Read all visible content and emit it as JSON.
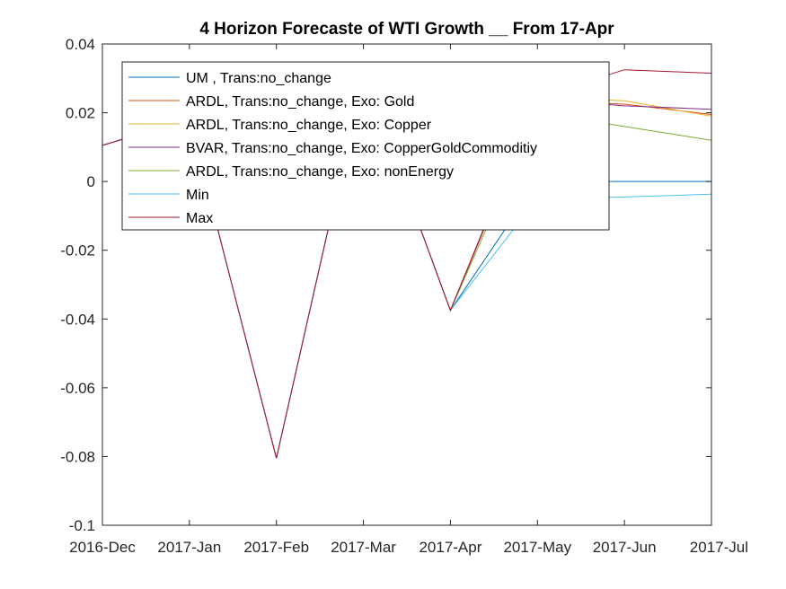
{
  "chart_data": {
    "type": "line",
    "title": "4 Horizon Forecaste of WTI Growth __ From 17-Apr",
    "xlabel": "",
    "ylabel": "",
    "categories": [
      "2016-Dec",
      "2017-Jan",
      "2017-Feb",
      "2017-Mar",
      "2017-Apr",
      "2017-May",
      "2017-Jun",
      "2017-Jul"
    ],
    "ylim": [
      -0.1,
      0.04
    ],
    "yticks": [
      "-0.1",
      "-0.08",
      "-0.06",
      "-0.04",
      "-0.02",
      "0",
      "0.02",
      "0.04"
    ],
    "grid": false,
    "legend_position": "top-left",
    "series": [
      {
        "name": "UM , Trans:no_change",
        "color": "#0072BD",
        "values": [
          0.0105,
          0.0182,
          -0.0805,
          0.0315,
          -0.0375,
          0.0,
          0.0,
          0.0
        ]
      },
      {
        "name": "ARDL, Trans:no_change, Exo: Gold",
        "color": "#D95319",
        "values": [
          0.0105,
          0.0182,
          -0.0805,
          0.0315,
          -0.0375,
          0.0235,
          0.0225,
          0.0195
        ]
      },
      {
        "name": "ARDL, Trans:no_change, Exo: Copper",
        "color": "#EDB120",
        "values": [
          0.0105,
          0.0182,
          -0.0805,
          0.0315,
          -0.0375,
          0.0245,
          0.0235,
          0.019
        ]
      },
      {
        "name": "BVAR, Trans:no_change, Exo: CopperGoldCommoditiy",
        "color": "#7E2F8E",
        "values": [
          0.0105,
          0.0182,
          -0.0805,
          0.0315,
          -0.0375,
          0.024,
          0.022,
          0.021
        ]
      },
      {
        "name": "ARDL, Trans:no_change, Exo: nonEnergy",
        "color": "#77AC30",
        "values": [
          0.0105,
          0.0182,
          -0.0805,
          0.0315,
          -0.0375,
          0.02,
          0.016,
          0.012
        ]
      },
      {
        "name": "Min",
        "color": "#4DBEEE",
        "values": [
          0.0105,
          0.0182,
          -0.0805,
          0.0315,
          -0.0375,
          -0.005,
          -0.0045,
          -0.0037
        ]
      },
      {
        "name": "Max",
        "color": "#A2142F",
        "values": [
          0.0105,
          0.0182,
          -0.0805,
          0.0315,
          -0.0375,
          0.0245,
          0.0325,
          0.0315
        ]
      }
    ]
  }
}
